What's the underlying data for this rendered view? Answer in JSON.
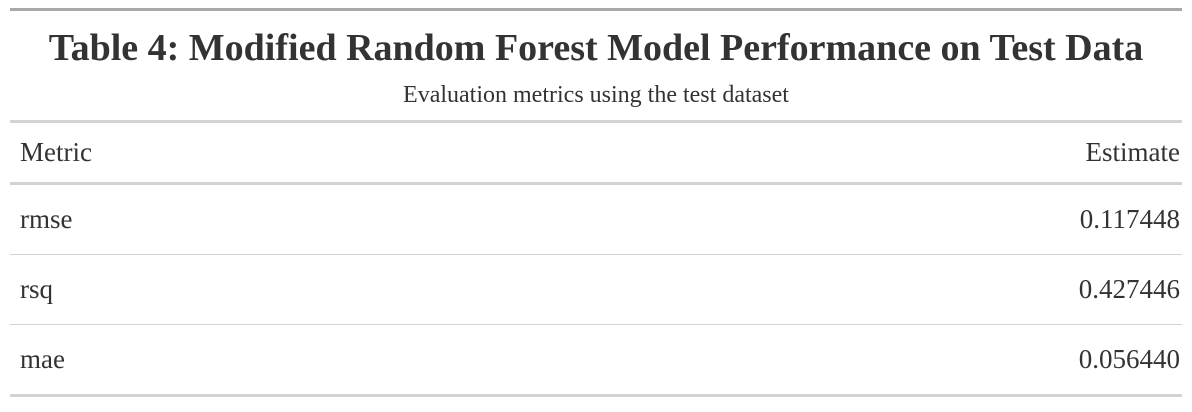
{
  "table": {
    "title": "Table 4: Modified Random Forest Model Performance on Test Data",
    "subtitle": "Evaluation metrics using the test dataset",
    "columns": [
      "Metric",
      "Estimate"
    ],
    "rows": [
      {
        "metric": "rmse",
        "estimate": "0.117448"
      },
      {
        "metric": "rsq",
        "estimate": "0.427446"
      },
      {
        "metric": "mae",
        "estimate": "0.056440"
      }
    ]
  },
  "colors": {
    "text": "#333333",
    "rule_dark": "#a8a8a8",
    "rule_light": "#d3d3d3"
  }
}
